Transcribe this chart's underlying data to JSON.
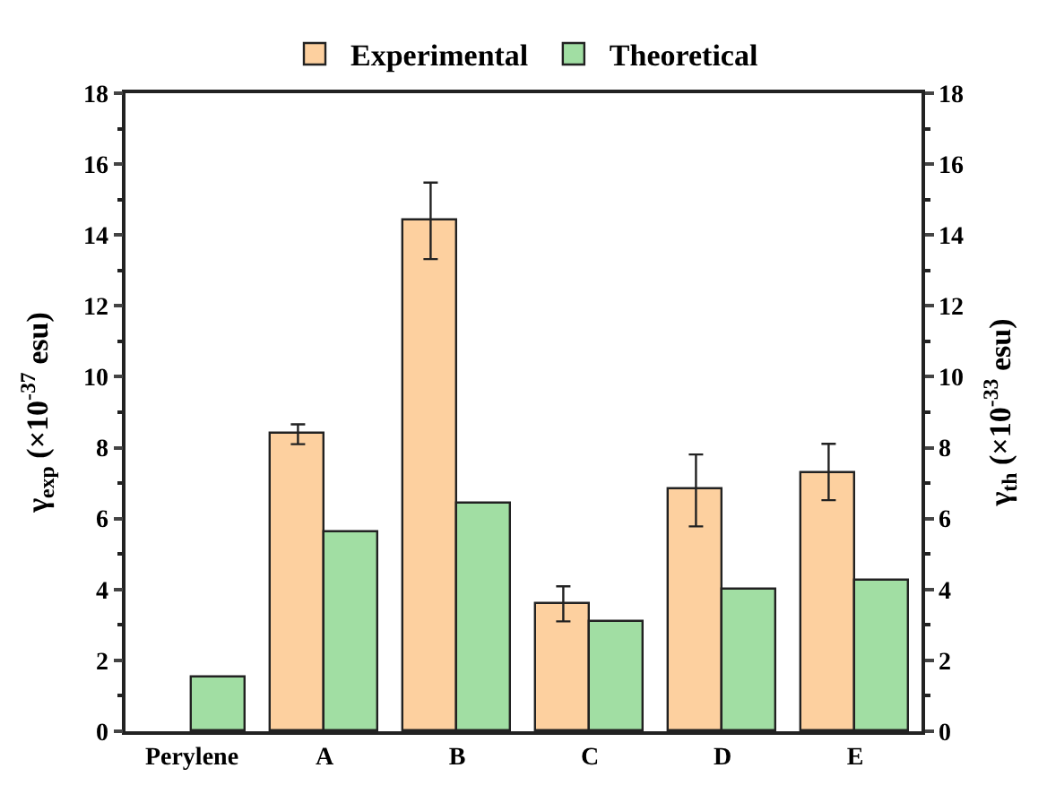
{
  "chart_data": {
    "type": "bar",
    "categories": [
      "Perylene",
      "A",
      "B",
      "C",
      "D",
      "E"
    ],
    "series": [
      {
        "name": "Experimental",
        "color": "#fdd09f",
        "values": [
          null,
          8.37,
          14.41,
          3.61,
          6.81,
          7.28
        ],
        "errors": [
          null,
          [
            8.1,
            8.66
          ],
          [
            13.32,
            15.48
          ],
          [
            3.1,
            4.09
          ],
          [
            5.78,
            7.81
          ],
          [
            6.52,
            8.11
          ]
        ]
      },
      {
        "name": "Theoretical",
        "color": "#a1deA3",
        "axis": "y2",
        "values": [
          1.53,
          5.59,
          6.42,
          3.07,
          3.99,
          4.25
        ]
      }
    ],
    "ylabel": "γ$_{exp}$ (×10$^{-37}$ esu)",
    "y2label": "γ$_{th}$ (×10$^{-33}$ esu)",
    "ylim": [
      0,
      18
    ],
    "yticks": [
      0,
      2,
      4,
      6,
      8,
      10,
      12,
      14,
      16,
      18
    ],
    "y2lim": [
      0,
      18
    ],
    "y2ticks": [
      0,
      2,
      4,
      6,
      8,
      10,
      12,
      14,
      16,
      18
    ],
    "legend": "top"
  }
}
